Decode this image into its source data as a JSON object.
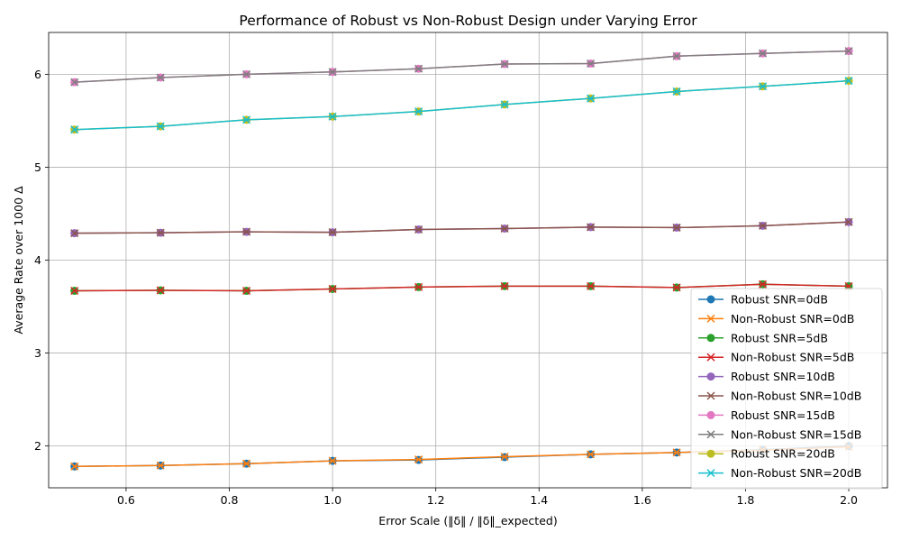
{
  "chart_data": {
    "type": "line",
    "title": "Performance of Robust vs Non-Robust Design under Varying Error",
    "xlabel": "Error Scale (‖δ‖ / ‖δ‖_expected)",
    "ylabel": "Average Rate over 1000 Δ",
    "xlim": [
      0.45,
      2.075
    ],
    "ylim": [
      1.55,
      6.45
    ],
    "xticks": [
      0.6,
      0.8,
      1.0,
      1.2,
      1.4,
      1.6,
      1.8,
      2.0
    ],
    "xtick_labels": [
      "0.6",
      "0.8",
      "1.0",
      "1.2",
      "1.4",
      "1.6",
      "1.8",
      "2.0"
    ],
    "yticks": [
      2,
      3,
      4,
      5,
      6
    ],
    "ytick_labels": [
      "2",
      "3",
      "4",
      "5",
      "6"
    ],
    "grid": true,
    "legend_position": "lower-right",
    "x": [
      0.5,
      0.6667,
      0.8333,
      1.0,
      1.1667,
      1.3333,
      1.5,
      1.6667,
      1.8333,
      2.0
    ],
    "series": [
      {
        "name": "Robust SNR=0dB",
        "color": "#1f77b4",
        "marker": "circle",
        "values": [
          1.78,
          1.79,
          1.81,
          1.84,
          1.85,
          1.88,
          1.91,
          1.93,
          1.96,
          2.0
        ]
      },
      {
        "name": "Non-Robust SNR=0dB",
        "color": "#ff7f0e",
        "marker": "x",
        "values": [
          1.78,
          1.79,
          1.81,
          1.84,
          1.855,
          1.885,
          1.91,
          1.93,
          1.955,
          1.99
        ]
      },
      {
        "name": "Robust SNR=5dB",
        "color": "#2ca02c",
        "marker": "circle",
        "values": [
          3.67,
          3.675,
          3.67,
          3.69,
          3.71,
          3.72,
          3.72,
          3.705,
          3.74,
          3.72
        ]
      },
      {
        "name": "Non-Robust SNR=5dB",
        "color": "#d62728",
        "marker": "x",
        "values": [
          3.67,
          3.675,
          3.67,
          3.69,
          3.71,
          3.72,
          3.72,
          3.705,
          3.74,
          3.72
        ]
      },
      {
        "name": "Robust SNR=10dB",
        "color": "#9467bd",
        "marker": "circle",
        "values": [
          4.29,
          4.295,
          4.305,
          4.3,
          4.33,
          4.34,
          4.355,
          4.35,
          4.37,
          4.41
        ]
      },
      {
        "name": "Non-Robust SNR=10dB",
        "color": "#8c564b",
        "marker": "x",
        "values": [
          4.29,
          4.295,
          4.305,
          4.3,
          4.33,
          4.34,
          4.355,
          4.35,
          4.37,
          4.41
        ]
      },
      {
        "name": "Robust SNR=15dB",
        "color": "#e377c2",
        "marker": "circle",
        "values": [
          5.915,
          5.965,
          6.0,
          6.025,
          6.06,
          6.11,
          6.115,
          6.195,
          6.225,
          6.25
        ]
      },
      {
        "name": "Non-Robust SNR=15dB",
        "color": "#7f7f7f",
        "marker": "x",
        "values": [
          5.915,
          5.965,
          6.0,
          6.025,
          6.06,
          6.11,
          6.115,
          6.195,
          6.225,
          6.25
        ]
      },
      {
        "name": "Robust SNR=20dB",
        "color": "#bcbd22",
        "marker": "circle",
        "values": [
          5.405,
          5.44,
          5.51,
          5.545,
          5.6,
          5.675,
          5.74,
          5.815,
          5.87,
          5.93
        ]
      },
      {
        "name": "Non-Robust SNR=20dB",
        "color": "#17becf",
        "marker": "x",
        "values": [
          5.405,
          5.44,
          5.51,
          5.545,
          5.6,
          5.675,
          5.74,
          5.815,
          5.87,
          5.93
        ]
      }
    ]
  }
}
